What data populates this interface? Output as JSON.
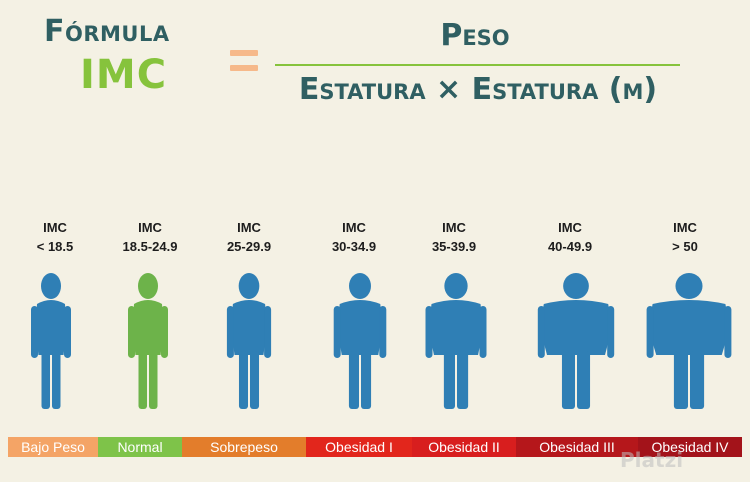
{
  "title": {
    "line1": "Fórmula",
    "line2": "IMC"
  },
  "formula": {
    "equals": "=",
    "numerator": "Peso",
    "denominator": "Estatura × Estatura (m)"
  },
  "categories": [
    {
      "label_top": "IMC",
      "range": "< 18.5",
      "bar": "Bajo Peso",
      "bar_color": "#f4a466",
      "figure_color": "#2f7fb5"
    },
    {
      "label_top": "IMC",
      "range": "18.5-24.9",
      "bar": "Normal",
      "bar_color": "#7ec349",
      "figure_color": "#6db34a"
    },
    {
      "label_top": "IMC",
      "range": "25-29.9",
      "bar": "Sobrepeso",
      "bar_color": "#e37d2b",
      "figure_color": "#2f7fb5"
    },
    {
      "label_top": "IMC",
      "range": "30-34.9",
      "bar": "Obesidad I",
      "bar_color": "#e2261c",
      "figure_color": "#2f7fb5"
    },
    {
      "label_top": "IMC",
      "range": "35-39.9",
      "bar": "Obesidad II",
      "bar_color": "#d81e1e",
      "figure_color": "#2f7fb5"
    },
    {
      "label_top": "IMC",
      "range": "40-49.9",
      "bar": "Obesidad III",
      "bar_color": "#b5171b",
      "figure_color": "#2f7fb5"
    },
    {
      "label_top": "IMC",
      "range": "> 50",
      "bar": "Obesidad IV",
      "bar_color": "#a3131a",
      "figure_color": "#2f7fb5"
    }
  ],
  "watermark": "Platzi"
}
